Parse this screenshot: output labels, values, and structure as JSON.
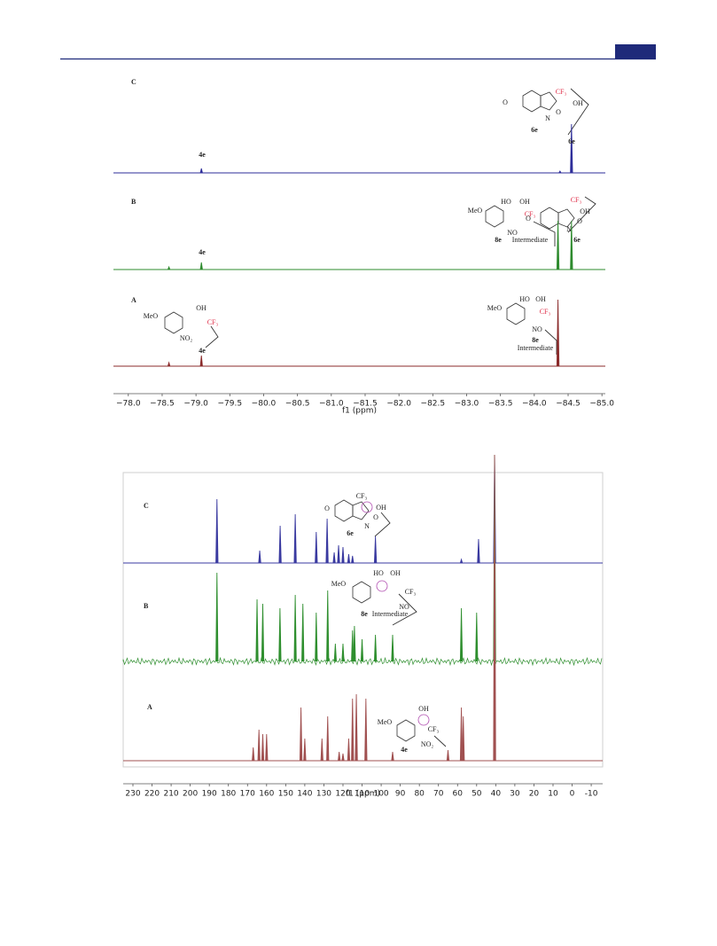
{
  "chart_data": [
    {
      "type": "spectrum",
      "xlabel": "f1 (ppm)",
      "xlim": [
        -77.78,
        -85.05
      ],
      "xticks": [
        {
          "value": -78,
          "label": "−78.0"
        },
        {
          "value": -78.5,
          "label": "−78.5"
        },
        {
          "value": -79,
          "label": "−79.0"
        },
        {
          "value": -79.5,
          "label": "−79.5"
        },
        {
          "value": -80,
          "label": "−80.0"
        },
        {
          "value": -80.5,
          "label": "−80.5"
        },
        {
          "value": -81,
          "label": "−81.0"
        },
        {
          "value": -81.5,
          "label": "−81.5"
        },
        {
          "value": -82,
          "label": "−82.0"
        },
        {
          "value": -82.5,
          "label": "−82.5"
        },
        {
          "value": -83,
          "label": "−83.0"
        },
        {
          "value": -83.5,
          "label": "−83.5"
        },
        {
          "value": -84,
          "label": "−84.0"
        },
        {
          "value": -84.5,
          "label": "−84.5"
        },
        {
          "value": -85,
          "label": "−85.0"
        }
      ],
      "series": [
        {
          "name": "C",
          "color": "#2e2e9a",
          "x": [
            -79.08,
            -84.38,
            -84.55
          ],
          "values": [
            5,
            2,
            55
          ]
        },
        {
          "name": "B",
          "color": "#2e8b2e",
          "x": [
            -78.6,
            -79.08,
            -84.35,
            -84.55
          ],
          "values": [
            3,
            8,
            55,
            55
          ]
        },
        {
          "name": "A",
          "color": "#8b2b2b",
          "x": [
            -78.6,
            -79.08,
            -84.35
          ],
          "values": [
            4,
            12,
            75
          ]
        }
      ],
      "annotations": [
        "4e",
        "O",
        "CF₃",
        "OH",
        "O",
        "N",
        "6e",
        "6e",
        "4e",
        "MeO",
        "HO",
        "OH",
        "CF₃",
        "NO",
        "8e",
        "Intermediate",
        "O",
        "CF₃",
        "OH",
        "O",
        "N",
        "6e",
        "MeO",
        "OH",
        "CF₃",
        "NO₂",
        "4e",
        "MeO",
        "HO",
        "OH",
        "CF₃",
        "NO",
        "8e",
        "Intermediate"
      ]
    },
    {
      "type": "spectrum",
      "xlabel": "f1 (ppm)",
      "xlim": [
        235.1,
        -16
      ],
      "xticks": [
        230,
        220,
        210,
        200,
        190,
        180,
        170,
        160,
        150,
        140,
        130,
        120,
        110,
        100,
        90,
        80,
        70,
        60,
        50,
        40,
        30,
        20,
        10,
        0,
        -10
      ],
      "series": [
        {
          "name": "C",
          "color": "#3a3aa0",
          "x": [
            186,
            163.6,
            152.9,
            145,
            134,
            128.3,
            124.6,
            122.3,
            120,
            117,
            115,
            103,
            58,
            49,
            40.6
          ],
          "values": [
            72,
            14,
            42,
            55,
            35,
            50,
            12,
            20,
            18,
            10,
            8,
            30,
            4,
            27,
            122
          ]
        },
        {
          "name": "B",
          "color": "#2f8f2f",
          "x": [
            186,
            165,
            162,
            153,
            145,
            141,
            134,
            128,
            124,
            120,
            115,
            114,
            110,
            103,
            94,
            58,
            50,
            40.6
          ],
          "values": [
            100,
            70,
            65,
            60,
            75,
            65,
            55,
            80,
            20,
            20,
            35,
            40,
            25,
            30,
            30,
            60,
            55,
            233
          ]
        },
        {
          "name": "A",
          "color": "#a05050",
          "x": [
            167,
            164,
            162,
            160,
            142,
            140,
            131,
            128,
            122,
            120,
            117,
            115,
            113,
            108,
            94,
            65,
            58,
            57,
            40.6
          ],
          "values": [
            15,
            35,
            30,
            30,
            60,
            25,
            25,
            50,
            10,
            8,
            25,
            70,
            75,
            70,
            10,
            12,
            60,
            50,
            345
          ]
        }
      ],
      "annotations": [
        "CF₃",
        "O",
        "OH",
        "O",
        "N",
        "6e",
        "MeO",
        "HO",
        "OH",
        "CF₃",
        "NO",
        "8e",
        "Intermediate",
        "MeO",
        "OH",
        "CF₃",
        "NO₂",
        "4e"
      ]
    }
  ]
}
